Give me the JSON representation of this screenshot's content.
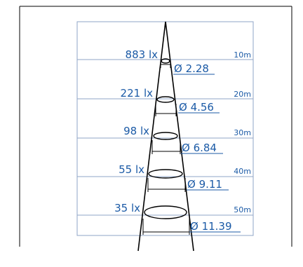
{
  "diagram": {
    "colors": {
      "label": "#1b5aa6",
      "grid": "#8fa4c7",
      "border": "#000000",
      "beam": "#000000"
    },
    "levels": [
      {
        "lux": "883 lx",
        "diameter": "Ø 2.28",
        "distance": "10m"
      },
      {
        "lux": "221 lx",
        "diameter": "Ø 4.56",
        "distance": "20m"
      },
      {
        "lux": "98 lx",
        "diameter": "Ø 6.84",
        "distance": "30m"
      },
      {
        "lux": "55 lx",
        "diameter": "Ø 9.11",
        "distance": "40m"
      },
      {
        "lux": "35 lx",
        "diameter": "Ø 11.39",
        "distance": "50m"
      }
    ]
  }
}
